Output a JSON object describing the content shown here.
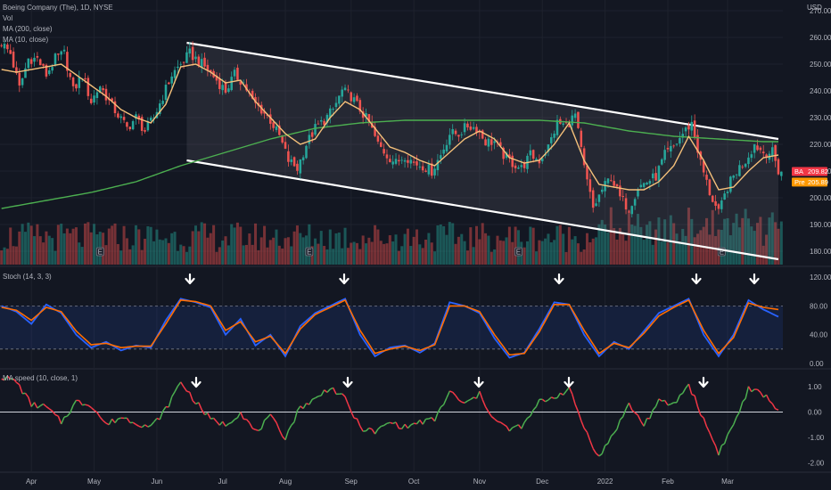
{
  "header": {
    "symbol_line": "Boeing Company (The), 1D, NYSE",
    "vol_label": "Vol",
    "ma200_label": "MA (200, close)",
    "ma10_label": "MA (10, close)",
    "currency": "USD"
  },
  "price_badges": {
    "last": {
      "ticker": "BA",
      "value": "209.82",
      "color": "#f23645"
    },
    "pre": {
      "ticker": "Pre",
      "value": "205.89",
      "color": "#ff9800"
    }
  },
  "indicators": {
    "stoch_label": "Stoch (14, 3, 3)",
    "ma_speed_label": "MA speed (10, close, 1)"
  },
  "colors": {
    "background": "#131722",
    "up": "#26a69a",
    "down": "#ef5350",
    "ma10": "#f5c07a",
    "ma200": "#4caf50",
    "stoch_k": "#2962ff",
    "stoch_d": "#ff6d00",
    "speed_up": "#4caf50",
    "speed_down": "#f23645"
  },
  "chart_data": [
    {
      "type": "candlestick",
      "price_axis": {
        "ticks": [
          180,
          190,
          200,
          210,
          220,
          230,
          240,
          250,
          260,
          270
        ],
        "range": [
          175,
          272
        ]
      },
      "x_axis": {
        "ticks": [
          "Apr",
          "May",
          "Jun",
          "Jul",
          "Aug",
          "Sep",
          "Oct",
          "Nov",
          "Dec",
          "2022",
          "Feb",
          "Mar"
        ]
      },
      "close_path": [
        [
          0,
          258
        ],
        [
          3,
          254
        ],
        [
          6,
          241
        ],
        [
          9,
          252
        ],
        [
          12,
          252
        ],
        [
          15,
          246
        ],
        [
          18,
          252
        ],
        [
          21,
          254
        ],
        [
          24,
          240
        ],
        [
          27,
          246
        ],
        [
          30,
          236
        ],
        [
          33,
          242
        ],
        [
          36,
          236
        ],
        [
          39,
          231
        ],
        [
          42,
          226
        ],
        [
          45,
          230
        ],
        [
          48,
          225
        ],
        [
          51,
          230
        ],
        [
          54,
          238
        ],
        [
          57,
          246
        ],
        [
          60,
          250
        ],
        [
          63,
          254
        ],
        [
          66,
          251
        ],
        [
          69,
          248
        ],
        [
          72,
          244
        ],
        [
          75,
          240
        ],
        [
          78,
          246
        ],
        [
          81,
          243
        ],
        [
          84,
          236
        ],
        [
          87,
          233
        ],
        [
          90,
          229
        ],
        [
          93,
          223
        ],
        [
          96,
          214
        ],
        [
          99,
          211
        ],
        [
          102,
          220
        ],
        [
          105,
          226
        ],
        [
          108,
          229
        ],
        [
          111,
          233
        ],
        [
          114,
          240
        ],
        [
          117,
          238
        ],
        [
          120,
          233
        ],
        [
          123,
          228
        ],
        [
          126,
          220
        ],
        [
          129,
          216
        ],
        [
          132,
          213
        ],
        [
          135,
          216
        ],
        [
          138,
          213
        ],
        [
          141,
          212
        ],
        [
          144,
          210
        ],
        [
          147,
          216
        ],
        [
          150,
          224
        ],
        [
          153,
          224
        ],
        [
          156,
          227
        ],
        [
          159,
          226
        ],
        [
          162,
          221
        ],
        [
          165,
          221
        ],
        [
          168,
          216
        ],
        [
          171,
          213
        ],
        [
          174,
          211
        ],
        [
          177,
          216
        ],
        [
          180,
          214
        ],
        [
          183,
          219
        ],
        [
          186,
          228
        ],
        [
          189,
          227
        ],
        [
          192,
          231
        ],
        [
          195,
          211
        ],
        [
          198,
          196
        ],
        [
          201,
          203
        ],
        [
          204,
          208
        ],
        [
          207,
          200
        ],
        [
          210,
          196
        ],
        [
          213,
          204
        ],
        [
          216,
          206
        ],
        [
          219,
          208
        ],
        [
          222,
          216
        ],
        [
          225,
          219
        ],
        [
          228,
          224
        ],
        [
          231,
          228
        ],
        [
          234,
          213
        ],
        [
          237,
          202
        ],
        [
          240,
          194
        ],
        [
          243,
          204
        ],
        [
          246,
          210
        ],
        [
          249,
          214
        ],
        [
          252,
          220
        ],
        [
          255,
          217
        ],
        [
          258,
          217
        ],
        [
          260,
          210
        ]
      ],
      "ma10": [
        [
          0,
          248
        ],
        [
          5,
          247
        ],
        [
          10,
          248
        ],
        [
          15,
          249
        ],
        [
          20,
          250
        ],
        [
          25,
          246
        ],
        [
          30,
          242
        ],
        [
          35,
          238
        ],
        [
          40,
          233
        ],
        [
          45,
          230
        ],
        [
          50,
          228
        ],
        [
          55,
          235
        ],
        [
          60,
          249
        ],
        [
          65,
          250
        ],
        [
          70,
          247
        ],
        [
          75,
          243
        ],
        [
          80,
          244
        ],
        [
          85,
          236
        ],
        [
          90,
          230
        ],
        [
          95,
          224
        ],
        [
          100,
          220
        ],
        [
          105,
          222
        ],
        [
          110,
          230
        ],
        [
          115,
          236
        ],
        [
          120,
          233
        ],
        [
          125,
          226
        ],
        [
          130,
          219
        ],
        [
          135,
          217
        ],
        [
          140,
          214
        ],
        [
          145,
          212
        ],
        [
          150,
          217
        ],
        [
          155,
          222
        ],
        [
          160,
          225
        ],
        [
          165,
          222
        ],
        [
          170,
          215
        ],
        [
          175,
          213
        ],
        [
          180,
          214
        ],
        [
          185,
          220
        ],
        [
          190,
          228
        ],
        [
          195,
          214
        ],
        [
          200,
          205
        ],
        [
          205,
          204
        ],
        [
          210,
          203
        ],
        [
          215,
          203
        ],
        [
          220,
          206
        ],
        [
          225,
          212
        ],
        [
          230,
          223
        ],
        [
          235,
          214
        ],
        [
          240,
          203
        ],
        [
          245,
          204
        ],
        [
          250,
          210
        ],
        [
          255,
          215
        ],
        [
          260,
          216
        ]
      ],
      "ma200": [
        [
          0,
          196
        ],
        [
          15,
          199
        ],
        [
          30,
          202
        ],
        [
          45,
          206
        ],
        [
          60,
          212
        ],
        [
          75,
          217
        ],
        [
          90,
          222
        ],
        [
          105,
          226
        ],
        [
          120,
          228
        ],
        [
          135,
          229
        ],
        [
          150,
          229
        ],
        [
          165,
          229
        ],
        [
          180,
          229
        ],
        [
          195,
          228
        ],
        [
          210,
          225
        ],
        [
          225,
          223
        ],
        [
          240,
          222
        ],
        [
          255,
          221
        ],
        [
          260,
          221
        ]
      ],
      "channel_upper": [
        [
          62,
          258
        ],
        [
          260,
          222
        ]
      ],
      "channel_lower": [
        [
          62,
          214
        ],
        [
          260,
          177
        ]
      ],
      "earnings_markers": [
        33,
        103,
        173,
        241
      ],
      "last_price": 209.82,
      "pre_price": 205.89
    },
    {
      "type": "line",
      "title": "Stoch (14, 3, 3)",
      "y_axis": {
        "ticks": [
          0,
          40,
          80,
          120
        ],
        "range": [
          -5,
          130
        ]
      },
      "bands": [
        20,
        80
      ],
      "k": [
        [
          0,
          80
        ],
        [
          5,
          72
        ],
        [
          10,
          55
        ],
        [
          15,
          82
        ],
        [
          20,
          70
        ],
        [
          25,
          40
        ],
        [
          30,
          22
        ],
        [
          35,
          30
        ],
        [
          40,
          18
        ],
        [
          45,
          25
        ],
        [
          50,
          22
        ],
        [
          55,
          60
        ],
        [
          60,
          90
        ],
        [
          65,
          85
        ],
        [
          70,
          78
        ],
        [
          75,
          40
        ],
        [
          80,
          62
        ],
        [
          85,
          25
        ],
        [
          90,
          40
        ],
        [
          95,
          10
        ],
        [
          100,
          52
        ],
        [
          105,
          70
        ],
        [
          110,
          80
        ],
        [
          115,
          90
        ],
        [
          120,
          40
        ],
        [
          125,
          10
        ],
        [
          130,
          22
        ],
        [
          135,
          25
        ],
        [
          140,
          15
        ],
        [
          145,
          28
        ],
        [
          150,
          85
        ],
        [
          155,
          80
        ],
        [
          160,
          70
        ],
        [
          165,
          35
        ],
        [
          170,
          8
        ],
        [
          175,
          15
        ],
        [
          180,
          48
        ],
        [
          185,
          85
        ],
        [
          190,
          82
        ],
        [
          195,
          40
        ],
        [
          200,
          10
        ],
        [
          205,
          30
        ],
        [
          210,
          20
        ],
        [
          215,
          45
        ],
        [
          220,
          70
        ],
        [
          225,
          80
        ],
        [
          230,
          90
        ],
        [
          235,
          40
        ],
        [
          240,
          10
        ],
        [
          245,
          40
        ],
        [
          250,
          88
        ],
        [
          255,
          75
        ],
        [
          260,
          65
        ]
      ],
      "d": [
        [
          0,
          78
        ],
        [
          5,
          74
        ],
        [
          10,
          60
        ],
        [
          15,
          78
        ],
        [
          20,
          72
        ],
        [
          25,
          45
        ],
        [
          30,
          26
        ],
        [
          35,
          28
        ],
        [
          40,
          22
        ],
        [
          45,
          24
        ],
        [
          50,
          24
        ],
        [
          55,
          55
        ],
        [
          60,
          88
        ],
        [
          65,
          86
        ],
        [
          70,
          80
        ],
        [
          75,
          46
        ],
        [
          80,
          58
        ],
        [
          85,
          30
        ],
        [
          90,
          38
        ],
        [
          95,
          14
        ],
        [
          100,
          48
        ],
        [
          105,
          68
        ],
        [
          110,
          78
        ],
        [
          115,
          88
        ],
        [
          120,
          46
        ],
        [
          125,
          14
        ],
        [
          130,
          20
        ],
        [
          135,
          24
        ],
        [
          140,
          18
        ],
        [
          145,
          26
        ],
        [
          150,
          80
        ],
        [
          155,
          80
        ],
        [
          160,
          72
        ],
        [
          165,
          40
        ],
        [
          170,
          12
        ],
        [
          175,
          14
        ],
        [
          180,
          44
        ],
        [
          185,
          82
        ],
        [
          190,
          82
        ],
        [
          195,
          46
        ],
        [
          200,
          14
        ],
        [
          205,
          28
        ],
        [
          210,
          22
        ],
        [
          215,
          42
        ],
        [
          220,
          66
        ],
        [
          225,
          78
        ],
        [
          230,
          88
        ],
        [
          235,
          46
        ],
        [
          240,
          14
        ],
        [
          245,
          36
        ],
        [
          250,
          84
        ],
        [
          255,
          78
        ],
        [
          260,
          75
        ]
      ]
    },
    {
      "type": "line",
      "title": "MA speed (10, close, 1)",
      "y_axis": {
        "ticks": [
          -2.0,
          -1.0,
          0.0,
          1.0
        ],
        "labels": [
          "-2.00",
          "-1.00",
          "0.00",
          "1.00"
        ],
        "range": [
          -2.3,
          1.6
        ]
      },
      "zero_line": 0,
      "values": [
        [
          0,
          1.4
        ],
        [
          5,
          1.2
        ],
        [
          10,
          0.3
        ],
        [
          15,
          0.2
        ],
        [
          20,
          -0.4
        ],
        [
          25,
          0.4
        ],
        [
          30,
          0.3
        ],
        [
          35,
          -0.5
        ],
        [
          40,
          -0.2
        ],
        [
          45,
          -0.4
        ],
        [
          50,
          -0.6
        ],
        [
          55,
          0.1
        ],
        [
          60,
          1.2
        ],
        [
          65,
          0.4
        ],
        [
          70,
          -0.3
        ],
        [
          75,
          -0.5
        ],
        [
          80,
          0.0
        ],
        [
          85,
          -0.8
        ],
        [
          90,
          -0.2
        ],
        [
          95,
          -1.0
        ],
        [
          100,
          0.2
        ],
        [
          105,
          0.5
        ],
        [
          110,
          1.0
        ],
        [
          115,
          0.5
        ],
        [
          120,
          -0.6
        ],
        [
          125,
          -0.8
        ],
        [
          130,
          -0.4
        ],
        [
          135,
          -0.6
        ],
        [
          140,
          -0.4
        ],
        [
          145,
          -0.3
        ],
        [
          150,
          0.8
        ],
        [
          155,
          0.3
        ],
        [
          160,
          0.7
        ],
        [
          165,
          -0.3
        ],
        [
          170,
          -0.7
        ],
        [
          175,
          -0.5
        ],
        [
          180,
          0.4
        ],
        [
          185,
          0.6
        ],
        [
          190,
          0.9
        ],
        [
          195,
          -0.6
        ],
        [
          200,
          -1.8
        ],
        [
          205,
          -0.8
        ],
        [
          210,
          0.3
        ],
        [
          215,
          -0.5
        ],
        [
          220,
          0.4
        ],
        [
          225,
          0.3
        ],
        [
          230,
          1.1
        ],
        [
          235,
          -0.3
        ],
        [
          240,
          -1.6
        ],
        [
          245,
          -0.5
        ],
        [
          250,
          0.9
        ],
        [
          255,
          0.7
        ],
        [
          260,
          0.1
        ]
      ]
    }
  ]
}
